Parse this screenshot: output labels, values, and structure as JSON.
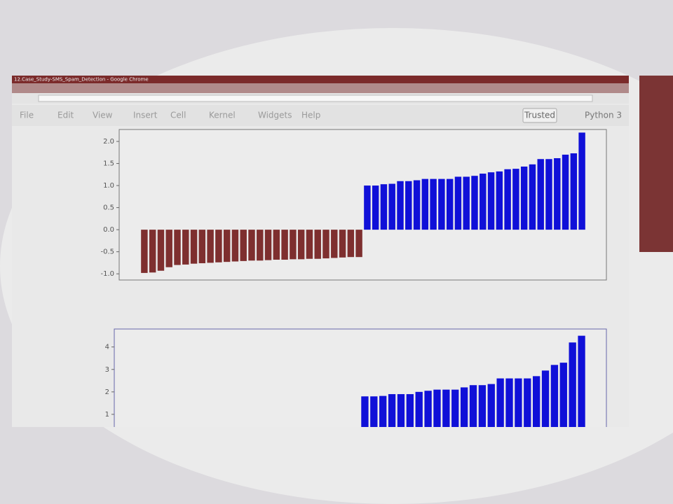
{
  "window": {
    "title": "12.Case_Study-SMS_Spam_Detection - Google Chrome"
  },
  "menu": [
    "File",
    "Edit",
    "View",
    "Insert",
    "Cell",
    "Kernel",
    "Widgets",
    "Help"
  ],
  "trusted": "Trusted",
  "kernel": "Python 3",
  "chart_data": [
    {
      "type": "bar",
      "ylim": [
        -1.14,
        2.27
      ],
      "yticks": [
        {
          "value": -1,
          "label": "-1.0"
        },
        -0.5,
        {
          "value": 0,
          "label": "0.0"
        },
        0.5,
        {
          "value": 1,
          "label": "1.0"
        },
        1.5,
        {
          "value": 2,
          "label": "2.0"
        }
      ],
      "series": [
        {
          "color": "#7e2f2f",
          "values": [
            -0.98,
            -0.97,
            -0.93,
            -0.85,
            -0.8,
            -0.79,
            -0.77,
            -0.76,
            -0.75,
            -0.74,
            -0.73,
            -0.72,
            -0.71,
            -0.7,
            -0.7,
            -0.69,
            -0.68,
            -0.68,
            -0.67,
            -0.67,
            -0.66,
            -0.66,
            -0.65,
            -0.64,
            -0.63,
            -0.62,
            -0.62
          ]
        },
        {
          "color": "#1010d8",
          "values": [
            1.0,
            1.0,
            1.03,
            1.04,
            1.1,
            1.1,
            1.12,
            1.15,
            1.15,
            1.15,
            1.15,
            1.2,
            1.2,
            1.22,
            1.27,
            1.3,
            1.32,
            1.37,
            1.38,
            1.43,
            1.48,
            1.6,
            1.6,
            1.62,
            1.7,
            1.73,
            2.2
          ]
        }
      ]
    },
    {
      "type": "bar",
      "ylim": [
        0,
        4.8
      ],
      "yticks": [
        1,
        2,
        3,
        4
      ],
      "series": [
        {
          "color": "#1010d8",
          "values": [
            1.8,
            1.8,
            1.82,
            1.9,
            1.9,
            1.9,
            2.0,
            2.05,
            2.1,
            2.1,
            2.1,
            2.2,
            2.3,
            2.3,
            2.35,
            2.6,
            2.6,
            2.6,
            2.6,
            2.7,
            2.95,
            3.2,
            3.3,
            4.2,
            4.5
          ]
        }
      ]
    }
  ]
}
